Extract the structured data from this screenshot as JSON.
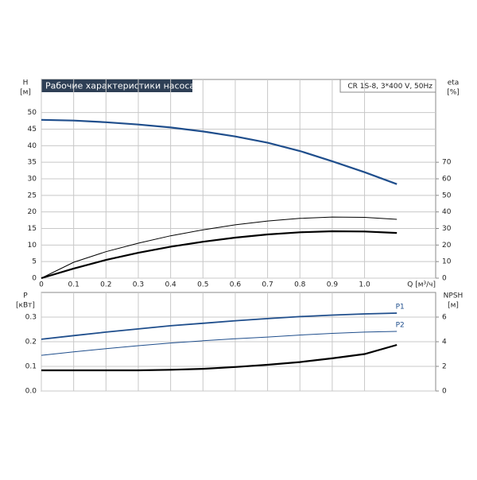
{
  "chart_data": [
    {
      "type": "line",
      "title": "Рабочие характеристики насоса",
      "subtitle": "CR 1S-8, 3*400 V, 50Hz",
      "y_label": "H",
      "y_unit": "[м]",
      "y2_label": "eta",
      "y2_unit": "[%]",
      "x_label": "Q [м³/ч]",
      "x": [
        0,
        0.1,
        0.2,
        0.3,
        0.4,
        0.5,
        0.6,
        0.7,
        0.8,
        0.9,
        1.0,
        1.1
      ],
      "xlim": [
        0,
        1.22
      ],
      "xticks": [
        0,
        0.1,
        0.2,
        0.3,
        0.4,
        0.5,
        0.6,
        0.7,
        0.8,
        0.9,
        {
          "value": 1,
          "label": "1.0"
        }
      ],
      "ylim": [
        0,
        60
      ],
      "yticks": [
        0,
        5,
        10,
        15,
        20,
        25,
        30,
        35,
        40,
        45,
        50
      ],
      "y2lim": [
        0,
        120
      ],
      "y2ticks": [
        0,
        10,
        20,
        30,
        40,
        50,
        60,
        70
      ],
      "grid": true,
      "series": [
        {
          "color": "#1f4e8c",
          "line_width": 2.2,
          "values": [
            47.8,
            47.6,
            47.1,
            46.4,
            45.5,
            44.3,
            42.8,
            40.9,
            38.4,
            35.3,
            32.0,
            28.4
          ]
        },
        {
          "color": "#000000",
          "line_width": 1,
          "axis": "y2",
          "values": [
            0,
            9.6,
            16,
            21.1,
            25.6,
            29.2,
            32.2,
            34.5,
            36.1,
            36.9,
            36.7,
            35.5
          ]
        },
        {
          "color": "#000000",
          "line_width": 2.2,
          "axis": "y2",
          "values": [
            0,
            5.8,
            11,
            15.3,
            19,
            22,
            24.5,
            26.4,
            27.7,
            28.3,
            28.2,
            27.3
          ]
        }
      ]
    },
    {
      "type": "line",
      "y_label": "P",
      "y_unit": "[кВт]",
      "y2_label": "NPSH",
      "y2_unit": "[м]",
      "x": [
        0,
        0.1,
        0.2,
        0.3,
        0.4,
        0.5,
        0.6,
        0.7,
        0.8,
        0.9,
        1.0,
        1.1
      ],
      "xlim": [
        0,
        1.22
      ],
      "ylim": [
        0,
        0.4
      ],
      "yticks": [
        {
          "value": 0,
          "label": "0.0"
        },
        0.1,
        0.2,
        0.3
      ],
      "y2lim": [
        0,
        8
      ],
      "y2ticks": [
        0,
        2,
        4,
        6
      ],
      "grid": true,
      "series": [
        {
          "name": "P1",
          "color": "#1f4e8c",
          "line_width": 1.8,
          "values": [
            0.21,
            0.225,
            0.239,
            0.252,
            0.265,
            0.275,
            0.285,
            0.294,
            0.302,
            0.308,
            0.313,
            0.316
          ]
        },
        {
          "name": "P2",
          "color": "#1f4e8c",
          "line_width": 1,
          "values": [
            0.145,
            0.159,
            0.172,
            0.184,
            0.195,
            0.204,
            0.212,
            0.219,
            0.227,
            0.234,
            0.239,
            0.242
          ]
        },
        {
          "color": "#000000",
          "line_width": 2.2,
          "axis": "y2",
          "values": [
            1.68,
            1.68,
            1.68,
            1.68,
            1.72,
            1.8,
            1.95,
            2.13,
            2.35,
            2.65,
            3.0,
            3.74
          ]
        }
      ]
    }
  ]
}
